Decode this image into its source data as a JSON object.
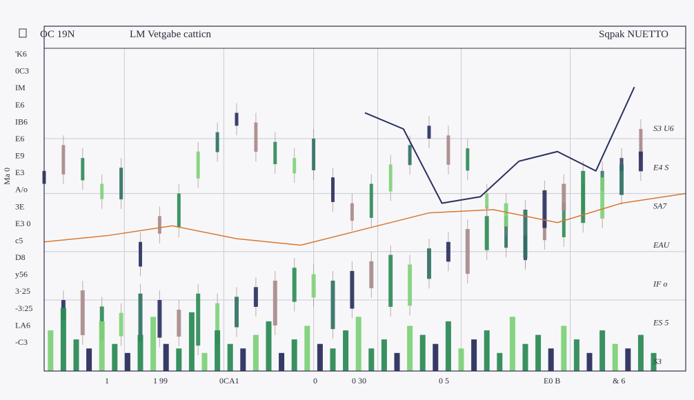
{
  "chart_data": {
    "type": "candlestick",
    "header": {
      "left": "OC 19N",
      "center": "LM Vetgabe catticn",
      "right": "Sqpak NUETTO"
    },
    "left_axis_labels": [
      "'K6",
      "0C3",
      "IM",
      "E6",
      "IB6",
      "E6",
      "E9",
      "E3",
      "A/o",
      "3E",
      "E3 0",
      "c5",
      "D8",
      "y56",
      "3·25",
      "-3:25",
      "LA6",
      "-C3"
    ],
    "left_axis_side_label": "Ma 0",
    "right_axis_labels": [
      "S3 U6",
      "E4 S",
      "SA7",
      "EAU",
      "IF o",
      "ES 5",
      "S3"
    ],
    "right_axis_label_colors": [
      "#2f8a3c",
      "#2b2b3a",
      "#2b2b3a",
      "#2b2b3a",
      "#2b2b3a",
      "#2b2b3a",
      "#2b2b3a"
    ],
    "x_axis_labels": [
      "1",
      "1 99",
      "0CA1",
      "0",
      "0 30",
      "0 5",
      "E0 B",
      "& 6"
    ],
    "colors": {
      "navy": "#2a2f5e",
      "green": "#2e8b57",
      "light_green": "#7fd17a",
      "teal": "#2f6f63",
      "mauve": "#a98a8a",
      "orange": "#d8772f",
      "grid": "#c9c9d3"
    },
    "series": [
      {
        "style": "candles-upper",
        "x": [
          0,
          3,
          6,
          9,
          12,
          15,
          18,
          21,
          24,
          27,
          30,
          33,
          36,
          39,
          42,
          45,
          48,
          51,
          54,
          57,
          60,
          63,
          66,
          69,
          72,
          75,
          78,
          81,
          84,
          87,
          90,
          93
        ],
        "y": [
          62,
          70,
          66,
          58,
          63,
          40,
          48,
          55,
          68,
          74,
          80,
          77,
          71,
          66,
          72,
          60,
          52,
          58,
          64,
          70,
          76,
          73,
          69,
          55,
          48,
          42,
          46,
          52,
          58,
          62,
          66,
          75
        ]
      },
      {
        "style": "candles-lower",
        "x": [
          3,
          6,
          9,
          12,
          15,
          18,
          21,
          24,
          27,
          30,
          33,
          36,
          39,
          42,
          45,
          48,
          51,
          54,
          57,
          60,
          63,
          66,
          69,
          72,
          75,
          78,
          81,
          84,
          87,
          90,
          93
        ],
        "y": [
          22,
          25,
          20,
          18,
          24,
          22,
          19,
          24,
          21,
          23,
          26,
          28,
          32,
          30,
          28,
          31,
          34,
          36,
          33,
          38,
          40,
          44,
          48,
          52,
          50,
          56,
          58,
          62,
          60,
          64,
          68
        ]
      },
      {
        "style": "volume",
        "x": [
          1,
          3,
          5,
          7,
          9,
          11,
          13,
          15,
          17,
          19,
          21,
          23,
          25,
          27,
          29,
          31,
          33,
          35,
          37,
          39,
          41,
          43,
          45,
          47,
          49,
          51,
          53,
          55,
          57,
          59,
          61,
          63,
          65,
          67,
          69,
          71,
          73,
          75,
          77,
          79,
          81,
          83,
          85,
          87,
          89,
          91,
          93,
          95
        ],
        "y": [
          9,
          14,
          7,
          5,
          11,
          6,
          4,
          8,
          12,
          6,
          5,
          13,
          4,
          9,
          6,
          5,
          8,
          11,
          4,
          7,
          10,
          6,
          5,
          9,
          12,
          5,
          7,
          4,
          10,
          8,
          6,
          11,
          5,
          7,
          9,
          4,
          12,
          6,
          8,
          5,
          10,
          7,
          4,
          9,
          6,
          5,
          8,
          4
        ]
      },
      {
        "style": "line-navy",
        "x": [
          50,
          56,
          62,
          68,
          74,
          80,
          86,
          92
        ],
        "y": [
          80,
          75,
          52,
          54,
          65,
          68,
          62,
          88
        ]
      },
      {
        "style": "line-orange",
        "x": [
          0,
          10,
          20,
          30,
          40,
          50,
          60,
          70,
          80,
          90,
          100
        ],
        "y": [
          40,
          42,
          45,
          41,
          39,
          44,
          49,
          50,
          46,
          52,
          55
        ]
      }
    ],
    "grid": true,
    "ylim": [
      0,
      100
    ],
    "xlim": [
      0,
      100
    ]
  }
}
